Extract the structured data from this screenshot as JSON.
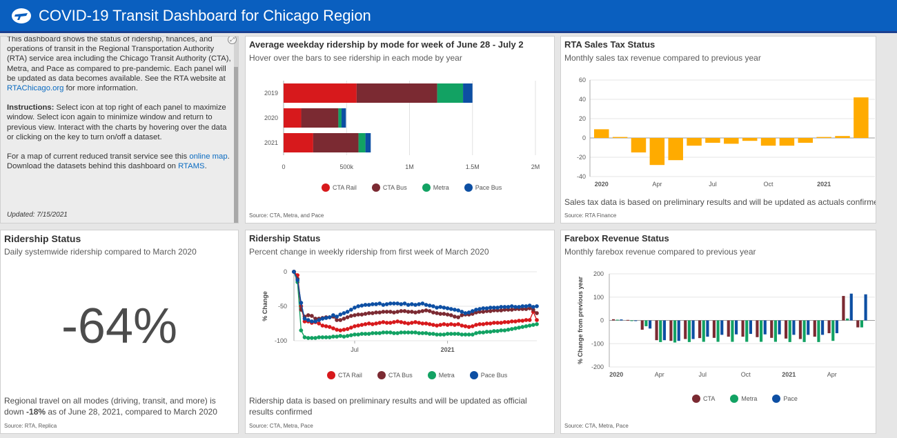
{
  "header": {
    "title": "COVID-19 Transit Dashboard for Chicago Region",
    "logo_icon": "rta-logo-icon"
  },
  "intro": {
    "para1_a": "This dashboard shows the status of ridership, finances, and operations of transit in the Regional Transportation Authority (RTA) service area including the Chicago Transit Authority (CTA), Metra, and Pace as compared to pre-pandemic.  Each panel will be updated as data becomes available.  See the RTA website at ",
    "para1_link": "RTAChicago.org",
    "para1_b": " for more information.",
    "instr_label": "Instructions:",
    "instr_text": "  Select icon at top right of each panel to maximize window.  Select icon again to minimize window and return to previous view.  Interact with the charts by hovering over the data or clicking on the key to turn on/off a dataset.",
    "map_a": "For a map of current reduced transit service see this ",
    "map_link": "online map",
    "map_b": ".",
    "download_a": "Download the datasets behind this dashboard on ",
    "download_link": "RTAMS",
    "download_b": ".",
    "updated": "Updated:  7/15/2021",
    "expand_icon": "expand-icon"
  },
  "colors": {
    "cta_rail": "#d7191c",
    "cta_bus": "#7b2a32",
    "metra": "#12a263",
    "pace": "#0d4fa3",
    "sales": "#ffab00"
  },
  "panels": {
    "weekday": {
      "title": "Average weekday ridership by mode for week of June 28 - July 2",
      "subtitle": "Hover over the bars to see ridership in each mode by year",
      "source": "Source:  CTA, Metra, and Pace"
    },
    "sales": {
      "title": "RTA Sales Tax Status",
      "subtitle": "Monthly sales tax revenue compared to previous year",
      "note": "Sales tax data is based on preliminary results and will be updated as actuals confirmed",
      "source": "Source:  RTA Finance"
    },
    "ridership_status": {
      "title": "Ridership Status",
      "subtitle": "Daily systemwide ridership compared to March 2020",
      "value": "-64%",
      "note_a": "Regional travel on all modes (driving, transit, and more) is down ",
      "note_bold": "-18%",
      "note_b": " as of June 28, 2021, compared to March 2020",
      "source": "Source:  RTA, Replica"
    },
    "weekly": {
      "title": "Ridership Status",
      "subtitle": "Percent change in weekly ridership from first week of March 2020",
      "note": "Ridership data is based on preliminary results and will be updated as official results confirmed",
      "source": "Source:  CTA, Metra, Pace"
    },
    "farebox": {
      "title": "Farebox Revenue Status",
      "subtitle": "Monthly farebox revenue compared to previous year",
      "source": "Source:  CTA, Metra, Pace"
    }
  },
  "chart_data": [
    {
      "type": "bar",
      "orientation": "horizontal",
      "stacked": true,
      "categories": [
        "2019",
        "2020",
        "2021"
      ],
      "series": [
        {
          "name": "CTA Rail",
          "values": [
            580000,
            140000,
            235000
          ]
        },
        {
          "name": "CTA Bus",
          "values": [
            640000,
            295000,
            360000
          ]
        },
        {
          "name": "Metra",
          "values": [
            205000,
            25000,
            55000
          ]
        },
        {
          "name": "Pace Bus",
          "values": [
            75000,
            35000,
            42000
          ]
        }
      ],
      "xlim": [
        0,
        2000000
      ],
      "xticks": [
        "0",
        "500k",
        "1M",
        "1.5M",
        "2M"
      ],
      "legend": "bottom"
    },
    {
      "type": "bar",
      "x": [
        "2020-01",
        "2020-02",
        "2020-03",
        "2020-04",
        "2020-05",
        "2020-06",
        "2020-07",
        "2020-08",
        "2020-09",
        "2020-10",
        "2020-11",
        "2020-12",
        "2021-01",
        "2021-02",
        "2021-03"
      ],
      "values": [
        9,
        1,
        -15,
        -28,
        -23,
        -8,
        -5,
        -6,
        -3,
        -8,
        -8,
        -5,
        1,
        2,
        42
      ],
      "ylim": [
        -40,
        60
      ],
      "yticks": [
        "60",
        "40",
        "20",
        "0",
        "-20",
        "-40"
      ],
      "xticks": [
        "2020",
        "Apr",
        "Jul",
        "Oct",
        "2021"
      ],
      "legend": "none"
    },
    {
      "type": "line",
      "ylabel": "% Change",
      "ylim": [
        -100,
        0
      ],
      "yticks": [
        "0",
        "-50",
        "-100"
      ],
      "xticks": [
        "Jul",
        "2021"
      ],
      "x_weeks": [
        0,
        1,
        2,
        3,
        4,
        5,
        6,
        7,
        8,
        9,
        10,
        11,
        12,
        13,
        14,
        15,
        16,
        17,
        18,
        19,
        20,
        21,
        22,
        23,
        24,
        25,
        26,
        27,
        28,
        29,
        30,
        31,
        32,
        33,
        34,
        35,
        36,
        37,
        38,
        39,
        40,
        41,
        42,
        43,
        44,
        45,
        46,
        47,
        48,
        49,
        50,
        51,
        52,
        53,
        54,
        55,
        56,
        57,
        58,
        59,
        60,
        61,
        62,
        63,
        64,
        65,
        66,
        67,
        68
      ],
      "series": [
        {
          "name": "CTA Rail",
          "values": [
            0,
            -5,
            -50,
            -72,
            -72,
            -74,
            -73,
            -75,
            -78,
            -79,
            -80,
            -82,
            -84,
            -85,
            -84,
            -83,
            -81,
            -79,
            -78,
            -77,
            -76,
            -75,
            -76,
            -75,
            -74,
            -73,
            -74,
            -74,
            -73,
            -72,
            -73,
            -74,
            -75,
            -74,
            -73,
            -74,
            -75,
            -75,
            -76,
            -77,
            -78,
            -77,
            -76,
            -77,
            -76,
            -77,
            -76,
            -78,
            -79,
            -80,
            -79,
            -77,
            -76,
            -76,
            -75,
            -75,
            -74,
            -74,
            -74,
            -73,
            -73,
            -72,
            -72,
            -71,
            -71,
            -70,
            -70,
            -58,
            -70
          ]
        },
        {
          "name": "CTA Bus",
          "values": [
            0,
            -10,
            -55,
            -65,
            -63,
            -64,
            -68,
            -68,
            -67,
            -66,
            -66,
            -65,
            -70,
            -70,
            -68,
            -66,
            -64,
            -63,
            -62,
            -62,
            -61,
            -60,
            -60,
            -59,
            -59,
            -58,
            -58,
            -58,
            -59,
            -58,
            -57,
            -57,
            -58,
            -58,
            -59,
            -58,
            -57,
            -56,
            -57,
            -59,
            -60,
            -61,
            -61,
            -62,
            -63,
            -65,
            -66,
            -63,
            -62,
            -62,
            -61,
            -59,
            -58,
            -58,
            -57,
            -57,
            -56,
            -56,
            -56,
            -55,
            -55,
            -55,
            -54,
            -54,
            -54,
            -54,
            -53,
            -55,
            -60
          ]
        },
        {
          "name": "Metra",
          "values": [
            0,
            -15,
            -85,
            -95,
            -96,
            -96,
            -96,
            -95,
            -95,
            -95,
            -95,
            -94,
            -94,
            -93,
            -94,
            -93,
            -92,
            -91,
            -91,
            -90,
            -90,
            -90,
            -89,
            -89,
            -89,
            -88,
            -88,
            -88,
            -89,
            -89,
            -88,
            -88,
            -88,
            -88,
            -88,
            -89,
            -89,
            -89,
            -90,
            -90,
            -91,
            -91,
            -91,
            -90,
            -90,
            -90,
            -90,
            -91,
            -91,
            -91,
            -91,
            -89,
            -88,
            -88,
            -87,
            -87,
            -86,
            -86,
            -85,
            -85,
            -84,
            -83,
            -82,
            -81,
            -80,
            -79,
            -78,
            -77,
            -76
          ]
        },
        {
          "name": "Pace Bus",
          "values": [
            0,
            -12,
            -45,
            -68,
            -70,
            -72,
            -72,
            -70,
            -68,
            -67,
            -66,
            -63,
            -65,
            -62,
            -60,
            -58,
            -55,
            -52,
            -50,
            -49,
            -48,
            -48,
            -47,
            -47,
            -46,
            -48,
            -47,
            -46,
            -46,
            -46,
            -47,
            -46,
            -48,
            -47,
            -48,
            -47,
            -46,
            -48,
            -49,
            -50,
            -52,
            -51,
            -52,
            -53,
            -54,
            -55,
            -56,
            -58,
            -60,
            -59,
            -57,
            -55,
            -54,
            -53,
            -53,
            -52,
            -52,
            -52,
            -51,
            -51,
            -51,
            -50,
            -51,
            -51,
            -50,
            -50,
            -49,
            -51,
            -50
          ]
        }
      ],
      "legend": "bottom"
    },
    {
      "type": "bar",
      "ylabel": "% Change from previous year",
      "ylim": [
        -200,
        200
      ],
      "yticks": [
        "200",
        "100",
        "0",
        "-100",
        "-200"
      ],
      "xticks": [
        "2020",
        "Apr",
        "Jul",
        "Oct",
        "2021",
        "Apr"
      ],
      "categories": [
        "2020-01",
        "2020-02",
        "2020-03",
        "2020-04",
        "2020-05",
        "2020-06",
        "2020-07",
        "2020-08",
        "2020-09",
        "2020-10",
        "2020-11",
        "2020-12",
        "2021-01",
        "2021-02",
        "2021-03",
        "2021-04",
        "2021-05",
        "2021-06"
      ],
      "series": [
        {
          "name": "CTA",
          "values": [
            5,
            2,
            -40,
            -85,
            -88,
            -80,
            -76,
            -75,
            -70,
            -70,
            -72,
            -75,
            -78,
            -80,
            -70,
            -55,
            105,
            -30
          ]
        },
        {
          "name": "Metra",
          "values": [
            3,
            -2,
            -25,
            -93,
            -95,
            -93,
            -92,
            -92,
            -92,
            -92,
            -92,
            -92,
            -93,
            -93,
            -93,
            -88,
            8,
            -30
          ]
        },
        {
          "name": "Pace",
          "values": [
            4,
            0,
            -35,
            -85,
            -88,
            -80,
            -70,
            -62,
            -60,
            -58,
            -60,
            -60,
            -62,
            -62,
            -62,
            -55,
            115,
            112
          ]
        }
      ],
      "legend": "bottom"
    }
  ]
}
